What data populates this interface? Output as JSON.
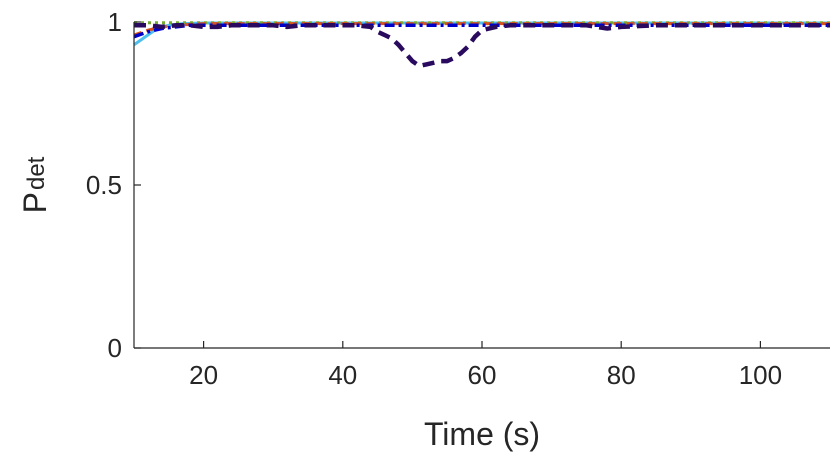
{
  "chart_data": {
    "type": "line",
    "title": "",
    "xlabel": "Time (s)",
    "ylabel_main": "P",
    "ylabel_sub": "det",
    "xlim": [
      10,
      110
    ],
    "ylim": [
      0,
      1
    ],
    "xticks": [
      20,
      40,
      60,
      80,
      100
    ],
    "yticks": [
      0,
      0.5,
      1
    ],
    "xtick_labels": [
      "20",
      "40",
      "60",
      "80",
      "100"
    ],
    "ytick_labels": [
      "0",
      "0.5",
      "1"
    ],
    "grid": false,
    "series": [
      {
        "color": "#4DBEEE",
        "width": 3,
        "dash": "",
        "x": [
          10,
          11,
          12,
          13,
          14,
          15,
          17,
          20,
          30,
          40,
          50,
          60,
          70,
          80,
          90,
          100,
          110
        ],
        "y": [
          0.93,
          0.945,
          0.96,
          0.975,
          0.985,
          0.99,
          0.995,
          0.997,
          0.997,
          0.997,
          0.997,
          0.997,
          0.997,
          0.997,
          0.997,
          0.997,
          0.997
        ]
      },
      {
        "color": "#77AC30",
        "width": 3,
        "dash": "3,4",
        "x": [
          10,
          20,
          30,
          40,
          50,
          60,
          70,
          80,
          90,
          100,
          110
        ],
        "y": [
          0.998,
          0.998,
          0.998,
          0.998,
          0.998,
          0.998,
          0.998,
          0.998,
          0.998,
          0.998,
          0.998
        ]
      },
      {
        "color": "#D95319",
        "width": 3,
        "dash": "8,5",
        "x": [
          10,
          12,
          14,
          16,
          20,
          30,
          40,
          50,
          60,
          70,
          80,
          90,
          100,
          110
        ],
        "y": [
          0.96,
          0.975,
          0.985,
          0.99,
          0.995,
          0.995,
          0.995,
          0.995,
          0.995,
          0.995,
          0.995,
          0.995,
          0.995,
          0.995
        ]
      },
      {
        "color": "#0000CC",
        "width": 3.5,
        "dash": "10,4,3,4",
        "x": [
          10,
          12,
          14,
          16,
          18,
          20,
          25,
          30,
          35,
          40,
          45,
          50,
          55,
          60,
          65,
          70,
          75,
          80,
          85,
          90,
          95,
          100,
          105,
          110
        ],
        "y": [
          0.955,
          0.97,
          0.98,
          0.985,
          0.99,
          0.99,
          0.99,
          0.99,
          0.99,
          0.99,
          0.99,
          0.99,
          0.99,
          0.99,
          0.99,
          0.99,
          0.99,
          0.99,
          0.99,
          0.99,
          0.99,
          0.99,
          0.99,
          0.99
        ]
      },
      {
        "color": "#2A0A5E",
        "width": 4.5,
        "dash": "12,7",
        "x": [
          10,
          12,
          14,
          16,
          18,
          20,
          22,
          24,
          26,
          28,
          30,
          32,
          34,
          36,
          38,
          40,
          42,
          44,
          45,
          46,
          47,
          48,
          49,
          50,
          51,
          52,
          53,
          54,
          55,
          56,
          57,
          58,
          59,
          60,
          62,
          64,
          66,
          68,
          70,
          75,
          78,
          80,
          85,
          90,
          95,
          100,
          105,
          110
        ],
        "y": [
          0.99,
          0.99,
          0.985,
          0.99,
          0.99,
          0.985,
          0.985,
          0.99,
          0.99,
          0.99,
          0.99,
          0.985,
          0.99,
          0.99,
          0.99,
          0.99,
          0.99,
          0.985,
          0.97,
          0.96,
          0.95,
          0.93,
          0.905,
          0.88,
          0.865,
          0.87,
          0.875,
          0.88,
          0.88,
          0.89,
          0.905,
          0.925,
          0.955,
          0.975,
          0.985,
          0.99,
          0.99,
          0.99,
          0.99,
          0.99,
          0.98,
          0.985,
          0.99,
          0.99,
          0.99,
          0.99,
          0.99,
          0.99
        ]
      }
    ]
  }
}
